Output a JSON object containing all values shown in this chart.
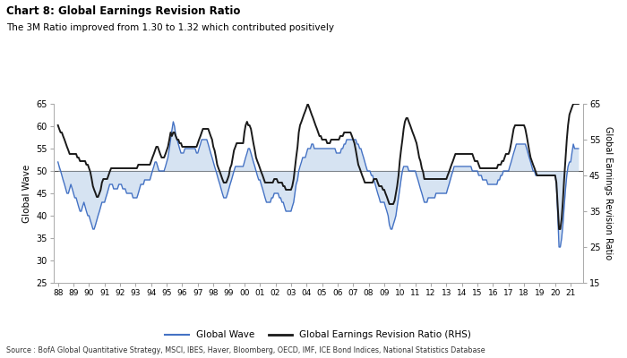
{
  "title": "Chart 8: Global Earnings Revision Ratio",
  "subtitle": "The 3M Ratio improved from 1.30 to 1.32 which contributed positively",
  "source": "Source : BofA Global Quantitative Strategy, MSCI, IBES, Haver, Bloomberg, OECD, IMF, ICE Bond Indices, National Statistics Database",
  "ylabel_left": "Global Wave",
  "ylabel_right": "Global Earnings Revision Ratio",
  "legend": [
    "Global Wave",
    "Global Earnings Revision Ratio (RHS)"
  ],
  "ylim_left": [
    25,
    65
  ],
  "ylim_right": [
    15,
    65
  ],
  "yticks_left": [
    25,
    30,
    35,
    40,
    45,
    50,
    55,
    60,
    65
  ],
  "yticks_right": [
    15,
    25,
    35,
    45,
    55,
    65
  ],
  "hline": 50,
  "x_labels": [
    "88",
    "89",
    "90",
    "91",
    "92",
    "93",
    "94",
    "95",
    "96",
    "97",
    "98",
    "99",
    "00",
    "01",
    "02",
    "03",
    "04",
    "05",
    "06",
    "07",
    "08",
    "09",
    "10",
    "11",
    "12",
    "13",
    "14",
    "15",
    "16",
    "17",
    "18",
    "19",
    "20",
    "21"
  ],
  "fill_color": "#c5d8ed",
  "fill_alpha": 0.7,
  "line_color_wave": "#4472c4",
  "line_color_ratio": "#1a1a1a",
  "t_years": [
    1988.0,
    1988.08,
    1988.17,
    1988.25,
    1988.33,
    1988.42,
    1988.5,
    1988.58,
    1988.67,
    1988.75,
    1988.83,
    1988.92,
    1989.0,
    1989.08,
    1989.17,
    1989.25,
    1989.33,
    1989.42,
    1989.5,
    1989.58,
    1989.67,
    1989.75,
    1989.83,
    1989.92,
    1990.0,
    1990.08,
    1990.17,
    1990.25,
    1990.33,
    1990.42,
    1990.5,
    1990.58,
    1990.67,
    1990.75,
    1990.83,
    1990.92,
    1991.0,
    1991.08,
    1991.17,
    1991.25,
    1991.33,
    1991.42,
    1991.5,
    1991.58,
    1991.67,
    1991.75,
    1991.83,
    1991.92,
    1992.0,
    1992.08,
    1992.17,
    1992.25,
    1992.33,
    1992.42,
    1992.5,
    1992.58,
    1992.67,
    1992.75,
    1992.83,
    1992.92,
    1993.0,
    1993.08,
    1993.17,
    1993.25,
    1993.33,
    1993.42,
    1993.5,
    1993.58,
    1993.67,
    1993.75,
    1993.83,
    1993.92,
    1994.0,
    1994.08,
    1994.17,
    1994.25,
    1994.33,
    1994.42,
    1994.5,
    1994.58,
    1994.67,
    1994.75,
    1994.83,
    1994.92,
    1995.0,
    1995.08,
    1995.17,
    1995.25,
    1995.33,
    1995.42,
    1995.5,
    1995.58,
    1995.67,
    1995.75,
    1995.83,
    1995.92,
    1996.0,
    1996.08,
    1996.17,
    1996.25,
    1996.33,
    1996.42,
    1996.5,
    1996.58,
    1996.67,
    1996.75,
    1996.83,
    1996.92,
    1997.0,
    1997.08,
    1997.17,
    1997.25,
    1997.33,
    1997.42,
    1997.5,
    1997.58,
    1997.67,
    1997.75,
    1997.83,
    1997.92,
    1998.0,
    1998.08,
    1998.17,
    1998.25,
    1998.33,
    1998.42,
    1998.5,
    1998.58,
    1998.67,
    1998.75,
    1998.83,
    1998.92,
    1999.0,
    1999.08,
    1999.17,
    1999.25,
    1999.33,
    1999.42,
    1999.5,
    1999.58,
    1999.67,
    1999.75,
    1999.83,
    1999.92,
    2000.0,
    2000.08,
    2000.17,
    2000.25,
    2000.33,
    2000.42,
    2000.5,
    2000.58,
    2000.67,
    2000.75,
    2000.83,
    2000.92,
    2001.0,
    2001.08,
    2001.17,
    2001.25,
    2001.33,
    2001.42,
    2001.5,
    2001.58,
    2001.67,
    2001.75,
    2001.83,
    2001.92,
    2002.0,
    2002.08,
    2002.17,
    2002.25,
    2002.33,
    2002.42,
    2002.5,
    2002.58,
    2002.67,
    2002.75,
    2002.83,
    2002.92,
    2003.0,
    2003.08,
    2003.17,
    2003.25,
    2003.33,
    2003.42,
    2003.5,
    2003.58,
    2003.67,
    2003.75,
    2003.83,
    2003.92,
    2004.0,
    2004.08,
    2004.17,
    2004.25,
    2004.33,
    2004.42,
    2004.5,
    2004.58,
    2004.67,
    2004.75,
    2004.83,
    2004.92,
    2005.0,
    2005.08,
    2005.17,
    2005.25,
    2005.33,
    2005.42,
    2005.5,
    2005.58,
    2005.67,
    2005.75,
    2005.83,
    2005.92,
    2006.0,
    2006.08,
    2006.17,
    2006.25,
    2006.33,
    2006.42,
    2006.5,
    2006.58,
    2006.67,
    2006.75,
    2006.83,
    2006.92,
    2007.0,
    2007.08,
    2007.17,
    2007.25,
    2007.33,
    2007.42,
    2007.5,
    2007.58,
    2007.67,
    2007.75,
    2007.83,
    2007.92,
    2008.0,
    2008.08,
    2008.17,
    2008.25,
    2008.33,
    2008.42,
    2008.5,
    2008.58,
    2008.67,
    2008.75,
    2008.83,
    2008.92,
    2009.0,
    2009.08,
    2009.17,
    2009.25,
    2009.33,
    2009.42,
    2009.5,
    2009.58,
    2009.67,
    2009.75,
    2009.83,
    2009.92,
    2010.0,
    2010.08,
    2010.17,
    2010.25,
    2010.33,
    2010.42,
    2010.5,
    2010.58,
    2010.67,
    2010.75,
    2010.83,
    2010.92,
    2011.0,
    2011.08,
    2011.17,
    2011.25,
    2011.33,
    2011.42,
    2011.5,
    2011.58,
    2011.67,
    2011.75,
    2011.83,
    2011.92,
    2012.0,
    2012.08,
    2012.17,
    2012.25,
    2012.33,
    2012.42,
    2012.5,
    2012.58,
    2012.67,
    2012.75,
    2012.83,
    2012.92,
    2013.0,
    2013.08,
    2013.17,
    2013.25,
    2013.33,
    2013.42,
    2013.5,
    2013.58,
    2013.67,
    2013.75,
    2013.83,
    2013.92,
    2014.0,
    2014.08,
    2014.17,
    2014.25,
    2014.33,
    2014.42,
    2014.5,
    2014.58,
    2014.67,
    2014.75,
    2014.83,
    2014.92,
    2015.0,
    2015.08,
    2015.17,
    2015.25,
    2015.33,
    2015.42,
    2015.5,
    2015.58,
    2015.67,
    2015.75,
    2015.83,
    2015.92,
    2016.0,
    2016.08,
    2016.17,
    2016.25,
    2016.33,
    2016.42,
    2016.5,
    2016.58,
    2016.67,
    2016.75,
    2016.83,
    2016.92,
    2017.0,
    2017.08,
    2017.17,
    2017.25,
    2017.33,
    2017.42,
    2017.5,
    2017.58,
    2017.67,
    2017.75,
    2017.83,
    2017.92,
    2018.0,
    2018.08,
    2018.17,
    2018.25,
    2018.33,
    2018.42,
    2018.5,
    2018.58,
    2018.67,
    2018.75,
    2018.83,
    2018.92,
    2019.0,
    2019.08,
    2019.17,
    2019.25,
    2019.33,
    2019.42,
    2019.5,
    2019.58,
    2019.67,
    2019.75,
    2019.83,
    2019.92,
    2020.0,
    2020.08,
    2020.17,
    2020.25,
    2020.33,
    2020.42,
    2020.5,
    2020.58,
    2020.67,
    2020.75,
    2020.83,
    2020.92,
    2021.0,
    2021.08,
    2021.17,
    2021.25,
    2021.33,
    2021.42,
    2021.5
  ],
  "global_wave": [
    52,
    51,
    50,
    49,
    48,
    47,
    46,
    45,
    45,
    46,
    47,
    46,
    45,
    44,
    44,
    43,
    42,
    41,
    41,
    42,
    43,
    42,
    41,
    40,
    40,
    39,
    38,
    37,
    37,
    38,
    39,
    40,
    41,
    42,
    43,
    43,
    43,
    44,
    45,
    46,
    47,
    47,
    47,
    46,
    46,
    46,
    46,
    47,
    47,
    47,
    46,
    46,
    46,
    45,
    45,
    45,
    45,
    45,
    44,
    44,
    44,
    44,
    45,
    46,
    47,
    47,
    47,
    48,
    48,
    48,
    48,
    48,
    49,
    50,
    51,
    52,
    52,
    51,
    50,
    50,
    50,
    50,
    50,
    51,
    52,
    53,
    55,
    57,
    59,
    61,
    60,
    58,
    57,
    56,
    55,
    54,
    54,
    54,
    55,
    55,
    55,
    55,
    55,
    55,
    55,
    55,
    55,
    54,
    54,
    55,
    56,
    57,
    57,
    57,
    57,
    57,
    56,
    55,
    54,
    53,
    52,
    51,
    50,
    49,
    48,
    47,
    46,
    45,
    44,
    44,
    44,
    45,
    46,
    47,
    48,
    49,
    50,
    51,
    51,
    51,
    51,
    51,
    51,
    51,
    52,
    53,
    54,
    55,
    55,
    54,
    53,
    52,
    51,
    50,
    49,
    48,
    48,
    47,
    46,
    45,
    44,
    43,
    43,
    43,
    43,
    44,
    44,
    45,
    45,
    45,
    45,
    44,
    44,
    43,
    43,
    42,
    41,
    41,
    41,
    41,
    41,
    42,
    43,
    45,
    47,
    48,
    50,
    51,
    52,
    53,
    53,
    53,
    54,
    55,
    55,
    55,
    56,
    56,
    55,
    55,
    55,
    55,
    55,
    55,
    55,
    55,
    55,
    55,
    55,
    55,
    55,
    55,
    55,
    55,
    55,
    54,
    54,
    54,
    54,
    55,
    55,
    56,
    56,
    57,
    57,
    57,
    57,
    57,
    57,
    57,
    57,
    56,
    56,
    55,
    55,
    54,
    53,
    52,
    51,
    50,
    50,
    50,
    49,
    49,
    48,
    47,
    46,
    45,
    44,
    43,
    43,
    43,
    43,
    42,
    41,
    40,
    38,
    37,
    37,
    38,
    39,
    40,
    42,
    44,
    46,
    48,
    50,
    51,
    51,
    51,
    51,
    50,
    50,
    50,
    50,
    50,
    50,
    49,
    48,
    47,
    46,
    45,
    44,
    43,
    43,
    43,
    44,
    44,
    44,
    44,
    44,
    44,
    45,
    45,
    45,
    45,
    45,
    45,
    45,
    45,
    45,
    46,
    47,
    48,
    49,
    50,
    51,
    51,
    51,
    51,
    51,
    51,
    51,
    51,
    51,
    51,
    51,
    51,
    51,
    51,
    50,
    50,
    50,
    50,
    50,
    49,
    49,
    49,
    48,
    48,
    48,
    48,
    47,
    47,
    47,
    47,
    47,
    47,
    47,
    47,
    48,
    48,
    49,
    49,
    50,
    50,
    50,
    50,
    50,
    51,
    52,
    53,
    54,
    55,
    56,
    56,
    56,
    56,
    56,
    56,
    56,
    56,
    55,
    54,
    53,
    52,
    51,
    50,
    50,
    49,
    49,
    49,
    49,
    49,
    49,
    49,
    49,
    49,
    49,
    49,
    49,
    49,
    49,
    49,
    49,
    47,
    40,
    33,
    33,
    35,
    38,
    42,
    46,
    49,
    51,
    52,
    52,
    54,
    56,
    55,
    55,
    55,
    55
  ],
  "global_ratio": [
    59,
    58,
    57,
    57,
    56,
    55,
    54,
    53,
    52,
    51,
    51,
    51,
    51,
    51,
    51,
    50,
    50,
    49,
    49,
    49,
    49,
    49,
    48,
    48,
    47,
    46,
    44,
    42,
    41,
    40,
    39,
    39,
    40,
    41,
    43,
    44,
    44,
    44,
    44,
    45,
    46,
    47,
    47,
    47,
    47,
    47,
    47,
    47,
    47,
    47,
    47,
    47,
    47,
    47,
    47,
    47,
    47,
    47,
    47,
    47,
    47,
    47,
    48,
    48,
    48,
    48,
    48,
    48,
    48,
    48,
    48,
    48,
    49,
    50,
    51,
    52,
    53,
    53,
    52,
    51,
    50,
    50,
    50,
    51,
    52,
    53,
    55,
    57,
    56,
    57,
    57,
    56,
    55,
    55,
    54,
    54,
    53,
    53,
    53,
    53,
    53,
    53,
    53,
    53,
    53,
    53,
    53,
    53,
    54,
    55,
    56,
    57,
    58,
    58,
    58,
    58,
    58,
    57,
    56,
    55,
    53,
    52,
    50,
    48,
    47,
    46,
    45,
    44,
    43,
    43,
    43,
    44,
    45,
    47,
    48,
    50,
    52,
    53,
    54,
    54,
    54,
    54,
    54,
    54,
    57,
    59,
    60,
    59,
    59,
    58,
    56,
    54,
    52,
    50,
    49,
    48,
    47,
    46,
    45,
    44,
    43,
    43,
    43,
    43,
    43,
    43,
    43,
    44,
    44,
    44,
    43,
    43,
    43,
    43,
    42,
    42,
    41,
    41,
    41,
    41,
    41,
    42,
    44,
    47,
    50,
    53,
    57,
    59,
    60,
    61,
    62,
    63,
    64,
    65,
    64,
    63,
    62,
    61,
    60,
    59,
    58,
    57,
    56,
    56,
    55,
    55,
    55,
    55,
    54,
    54,
    54,
    55,
    55,
    55,
    55,
    55,
    55,
    55,
    56,
    56,
    56,
    57,
    57,
    57,
    57,
    57,
    57,
    56,
    55,
    54,
    52,
    50,
    48,
    47,
    46,
    45,
    44,
    43,
    43,
    43,
    43,
    43,
    43,
    43,
    44,
    44,
    44,
    43,
    42,
    42,
    42,
    41,
    41,
    40,
    39,
    38,
    37,
    37,
    37,
    37,
    38,
    40,
    42,
    45,
    49,
    52,
    55,
    58,
    60,
    61,
    61,
    60,
    59,
    58,
    57,
    56,
    55,
    54,
    52,
    50,
    49,
    47,
    46,
    44,
    44,
    44,
    44,
    44,
    44,
    44,
    44,
    44,
    44,
    44,
    44,
    44,
    44,
    44,
    44,
    44,
    44,
    45,
    46,
    47,
    48,
    49,
    50,
    51,
    51,
    51,
    51,
    51,
    51,
    51,
    51,
    51,
    51,
    51,
    51,
    51,
    51,
    50,
    49,
    49,
    49,
    48,
    47,
    47,
    47,
    47,
    47,
    47,
    47,
    47,
    47,
    47,
    47,
    47,
    47,
    47,
    48,
    48,
    48,
    49,
    49,
    50,
    51,
    51,
    51,
    52,
    54,
    56,
    58,
    59,
    59,
    59,
    59,
    59,
    59,
    59,
    59,
    58,
    56,
    54,
    52,
    50,
    49,
    48,
    47,
    46,
    45,
    45,
    45,
    45,
    45,
    45,
    45,
    45,
    45,
    45,
    45,
    45,
    45,
    45,
    45,
    43,
    36,
    30,
    30,
    33,
    38,
    44,
    50,
    55,
    59,
    62,
    63,
    64,
    65,
    65,
    65,
    65,
    65
  ]
}
